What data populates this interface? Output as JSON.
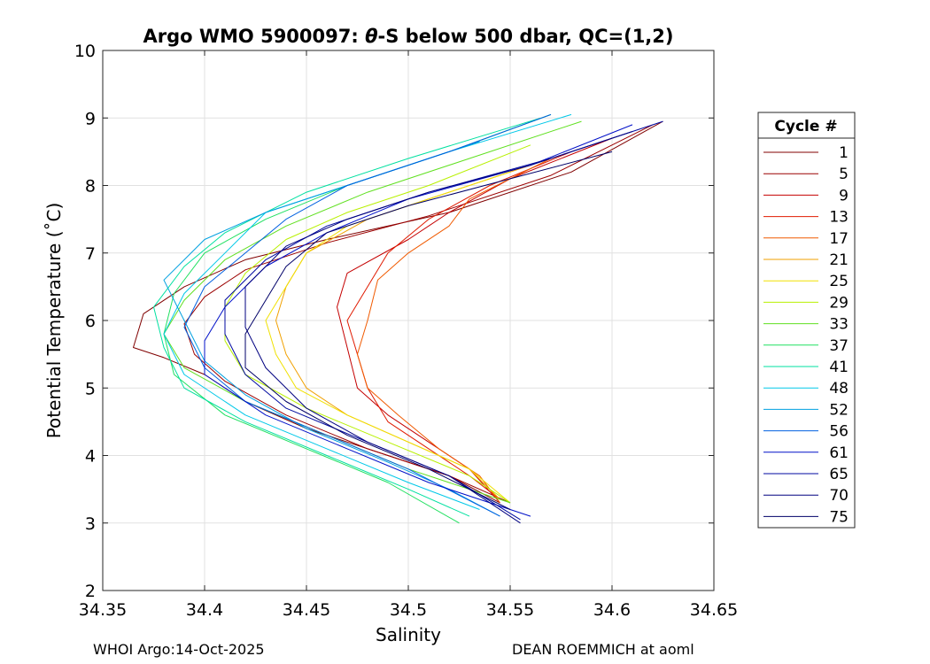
{
  "chart_data": {
    "type": "line",
    "title_prefix": "Argo WMO 5900097: ",
    "title_theta": "θ",
    "title_suffix": "-S below 500 dbar,  QC=(1,2)",
    "xlabel": "Salinity",
    "ylabel": "Potential Temperature (˚C)",
    "xlim": [
      34.35,
      34.65
    ],
    "ylim": [
      2,
      10
    ],
    "xticks": [
      34.35,
      34.4,
      34.45,
      34.5,
      34.55,
      34.6,
      34.65
    ],
    "xtick_labels": [
      "34.35",
      "34.4",
      "34.45",
      "34.5",
      "34.55",
      "34.6",
      "34.65"
    ],
    "yticks": [
      2,
      3,
      4,
      5,
      6,
      7,
      8,
      9,
      10
    ],
    "ytick_labels": [
      "2",
      "3",
      "4",
      "5",
      "6",
      "7",
      "8",
      "9",
      "10"
    ],
    "grid": true,
    "legend_title": "Cycle #",
    "legend_position": "outside-right",
    "series": [
      {
        "name": "1",
        "color": "#800000",
        "points": [
          [
            34.625,
            8.95
          ],
          [
            34.58,
            8.2
          ],
          [
            34.52,
            7.6
          ],
          [
            34.46,
            7.2
          ],
          [
            34.42,
            6.9
          ],
          [
            34.39,
            6.5
          ],
          [
            34.37,
            6.1
          ],
          [
            34.365,
            5.6
          ],
          [
            34.38,
            5.45
          ],
          [
            34.4,
            5.2
          ],
          [
            34.42,
            4.8
          ],
          [
            34.45,
            4.4
          ],
          [
            34.49,
            4.0
          ],
          [
            34.52,
            3.7
          ],
          [
            34.545,
            3.3
          ]
        ]
      },
      {
        "name": "5",
        "color": "#9b0000",
        "points": [
          [
            34.62,
            8.9
          ],
          [
            34.57,
            8.15
          ],
          [
            34.51,
            7.55
          ],
          [
            34.46,
            7.15
          ],
          [
            34.42,
            6.75
          ],
          [
            34.4,
            6.35
          ],
          [
            34.39,
            5.95
          ],
          [
            34.395,
            5.5
          ],
          [
            34.41,
            5.1
          ],
          [
            34.44,
            4.6
          ],
          [
            34.48,
            4.1
          ],
          [
            34.52,
            3.7
          ],
          [
            34.55,
            3.3
          ]
        ]
      },
      {
        "name": "9",
        "color": "#c40000",
        "points": [
          [
            34.6,
            8.7
          ],
          [
            34.55,
            8.1
          ],
          [
            34.52,
            7.6
          ],
          [
            34.5,
            7.2
          ],
          [
            34.47,
            6.7
          ],
          [
            34.465,
            6.2
          ],
          [
            34.47,
            5.6
          ],
          [
            34.475,
            5.0
          ],
          [
            34.49,
            4.6
          ],
          [
            34.51,
            4.2
          ],
          [
            34.53,
            3.8
          ],
          [
            34.545,
            3.3
          ]
        ]
      },
      {
        "name": "13",
        "color": "#e01a00",
        "points": [
          [
            34.58,
            8.5
          ],
          [
            34.54,
            8.0
          ],
          [
            34.51,
            7.5
          ],
          [
            34.49,
            7.0
          ],
          [
            34.48,
            6.5
          ],
          [
            34.47,
            6.0
          ],
          [
            34.475,
            5.5
          ],
          [
            34.48,
            5.0
          ],
          [
            34.49,
            4.5
          ],
          [
            34.51,
            4.1
          ],
          [
            34.53,
            3.7
          ],
          [
            34.545,
            3.35
          ]
        ]
      },
      {
        "name": "17",
        "color": "#f05a00",
        "points": [
          [
            34.57,
            8.4
          ],
          [
            34.53,
            7.8
          ],
          [
            34.52,
            7.4
          ],
          [
            34.5,
            7.0
          ],
          [
            34.485,
            6.6
          ],
          [
            34.48,
            6.0
          ],
          [
            34.475,
            5.5
          ],
          [
            34.48,
            5.0
          ],
          [
            34.495,
            4.6
          ],
          [
            34.515,
            4.1
          ],
          [
            34.535,
            3.7
          ],
          [
            34.545,
            3.3
          ]
        ]
      },
      {
        "name": "21",
        "color": "#f0a000",
        "points": [
          [
            34.56,
            8.3
          ],
          [
            34.52,
            7.9
          ],
          [
            34.48,
            7.5
          ],
          [
            34.45,
            7.0
          ],
          [
            34.44,
            6.5
          ],
          [
            34.435,
            6.0
          ],
          [
            34.44,
            5.5
          ],
          [
            34.45,
            5.0
          ],
          [
            34.47,
            4.6
          ],
          [
            34.5,
            4.2
          ],
          [
            34.53,
            3.8
          ],
          [
            34.545,
            3.35
          ]
        ]
      },
      {
        "name": "25",
        "color": "#f0e000",
        "points": [
          [
            34.55,
            8.2
          ],
          [
            34.51,
            7.8
          ],
          [
            34.47,
            7.4
          ],
          [
            34.45,
            7.0
          ],
          [
            34.44,
            6.5
          ],
          [
            34.43,
            6.0
          ],
          [
            34.435,
            5.5
          ],
          [
            34.445,
            5.0
          ],
          [
            34.47,
            4.6
          ],
          [
            34.5,
            4.2
          ],
          [
            34.53,
            3.8
          ],
          [
            34.55,
            3.3
          ]
        ]
      },
      {
        "name": "29",
        "color": "#b8f000",
        "points": [
          [
            34.56,
            8.6
          ],
          [
            34.51,
            8.0
          ],
          [
            34.47,
            7.6
          ],
          [
            34.44,
            7.2
          ],
          [
            34.42,
            6.7
          ],
          [
            34.41,
            6.2
          ],
          [
            34.41,
            5.7
          ],
          [
            34.42,
            5.2
          ],
          [
            34.45,
            4.7
          ],
          [
            34.49,
            4.2
          ],
          [
            34.53,
            3.7
          ],
          [
            34.55,
            3.3
          ]
        ]
      },
      {
        "name": "33",
        "color": "#60e020",
        "points": [
          [
            34.585,
            8.95
          ],
          [
            34.53,
            8.4
          ],
          [
            34.48,
            7.9
          ],
          [
            34.44,
            7.4
          ],
          [
            34.41,
            6.9
          ],
          [
            34.39,
            6.3
          ],
          [
            34.38,
            5.8
          ],
          [
            34.39,
            5.3
          ],
          [
            34.42,
            4.8
          ],
          [
            34.46,
            4.3
          ],
          [
            34.5,
            3.8
          ],
          [
            34.55,
            3.3
          ]
        ]
      },
      {
        "name": "37",
        "color": "#20e060",
        "points": [
          [
            34.57,
            9.05
          ],
          [
            34.52,
            8.5
          ],
          [
            34.47,
            8.0
          ],
          [
            34.43,
            7.5
          ],
          [
            34.4,
            7.0
          ],
          [
            34.385,
            6.4
          ],
          [
            34.38,
            5.8
          ],
          [
            34.385,
            5.2
          ],
          [
            34.41,
            4.6
          ],
          [
            34.45,
            4.1
          ],
          [
            34.49,
            3.6
          ],
          [
            34.525,
            3.0
          ]
        ]
      },
      {
        "name": "41",
        "color": "#00e0a0",
        "points": [
          [
            34.565,
            9.0
          ],
          [
            34.5,
            8.4
          ],
          [
            34.45,
            7.9
          ],
          [
            34.41,
            7.3
          ],
          [
            34.39,
            6.8
          ],
          [
            34.375,
            6.2
          ],
          [
            34.38,
            5.6
          ],
          [
            34.39,
            5.0
          ],
          [
            34.42,
            4.5
          ],
          [
            34.46,
            4.0
          ],
          [
            34.5,
            3.5
          ],
          [
            34.53,
            3.1
          ]
        ]
      },
      {
        "name": "48",
        "color": "#00c8e8",
        "points": [
          [
            34.58,
            9.05
          ],
          [
            34.52,
            8.5
          ],
          [
            34.47,
            8.0
          ],
          [
            34.43,
            7.6
          ],
          [
            34.41,
            7.0
          ],
          [
            34.39,
            6.4
          ],
          [
            34.38,
            5.8
          ],
          [
            34.39,
            5.2
          ],
          [
            34.42,
            4.6
          ],
          [
            34.46,
            4.1
          ],
          [
            34.5,
            3.6
          ],
          [
            34.535,
            3.2
          ]
        ]
      },
      {
        "name": "52",
        "color": "#00a0e0",
        "points": [
          [
            34.535,
            8.65
          ],
          [
            34.48,
            8.1
          ],
          [
            34.43,
            7.6
          ],
          [
            34.4,
            7.2
          ],
          [
            34.38,
            6.6
          ],
          [
            34.39,
            6.0
          ],
          [
            34.4,
            5.4
          ],
          [
            34.42,
            4.9
          ],
          [
            34.45,
            4.4
          ],
          [
            34.49,
            3.9
          ],
          [
            34.52,
            3.5
          ],
          [
            34.545,
            3.1
          ]
        ]
      },
      {
        "name": "56",
        "color": "#0060e0",
        "points": [
          [
            34.57,
            9.05
          ],
          [
            34.52,
            8.5
          ],
          [
            34.47,
            8.0
          ],
          [
            34.44,
            7.5
          ],
          [
            34.42,
            7.0
          ],
          [
            34.4,
            6.5
          ],
          [
            34.39,
            5.9
          ],
          [
            34.4,
            5.3
          ],
          [
            34.42,
            4.8
          ],
          [
            34.46,
            4.3
          ],
          [
            34.5,
            3.8
          ],
          [
            34.545,
            3.1
          ]
        ]
      },
      {
        "name": "61",
        "color": "#0010c8",
        "points": [
          [
            34.61,
            8.9
          ],
          [
            34.56,
            8.3
          ],
          [
            34.5,
            7.8
          ],
          [
            34.46,
            7.3
          ],
          [
            34.43,
            6.8
          ],
          [
            34.41,
            6.2
          ],
          [
            34.4,
            5.7
          ],
          [
            34.4,
            5.2
          ],
          [
            34.43,
            4.6
          ],
          [
            34.47,
            4.1
          ],
          [
            34.51,
            3.6
          ],
          [
            34.56,
            3.1
          ]
        ]
      },
      {
        "name": "65",
        "color": "#000aa0",
        "points": [
          [
            34.625,
            8.95
          ],
          [
            34.57,
            8.4
          ],
          [
            34.51,
            7.9
          ],
          [
            34.46,
            7.4
          ],
          [
            34.43,
            6.9
          ],
          [
            34.41,
            6.3
          ],
          [
            34.41,
            5.8
          ],
          [
            34.42,
            5.2
          ],
          [
            34.44,
            4.7
          ],
          [
            34.48,
            4.2
          ],
          [
            34.52,
            3.7
          ],
          [
            34.555,
            3.05
          ]
        ]
      },
      {
        "name": "70",
        "color": "#000080",
        "points": [
          [
            34.61,
            8.8
          ],
          [
            34.56,
            8.3
          ],
          [
            34.51,
            7.9
          ],
          [
            34.47,
            7.5
          ],
          [
            34.44,
            7.1
          ],
          [
            34.42,
            6.5
          ],
          [
            34.42,
            5.9
          ],
          [
            34.43,
            5.3
          ],
          [
            34.45,
            4.7
          ],
          [
            34.48,
            4.2
          ],
          [
            34.52,
            3.7
          ],
          [
            34.555,
            3.0
          ]
        ]
      },
      {
        "name": "75",
        "color": "#000068",
        "points": [
          [
            34.6,
            8.5
          ],
          [
            34.55,
            8.1
          ],
          [
            34.5,
            7.7
          ],
          [
            34.46,
            7.3
          ],
          [
            34.44,
            6.8
          ],
          [
            34.43,
            6.3
          ],
          [
            34.42,
            5.8
          ],
          [
            34.42,
            5.3
          ],
          [
            34.44,
            4.8
          ],
          [
            34.47,
            4.3
          ],
          [
            34.51,
            3.8
          ],
          [
            34.55,
            3.2
          ]
        ]
      }
    ]
  },
  "footer": {
    "left": "WHOI Argo:14-Oct-2025",
    "right": "DEAN ROEMMICH at aoml"
  }
}
